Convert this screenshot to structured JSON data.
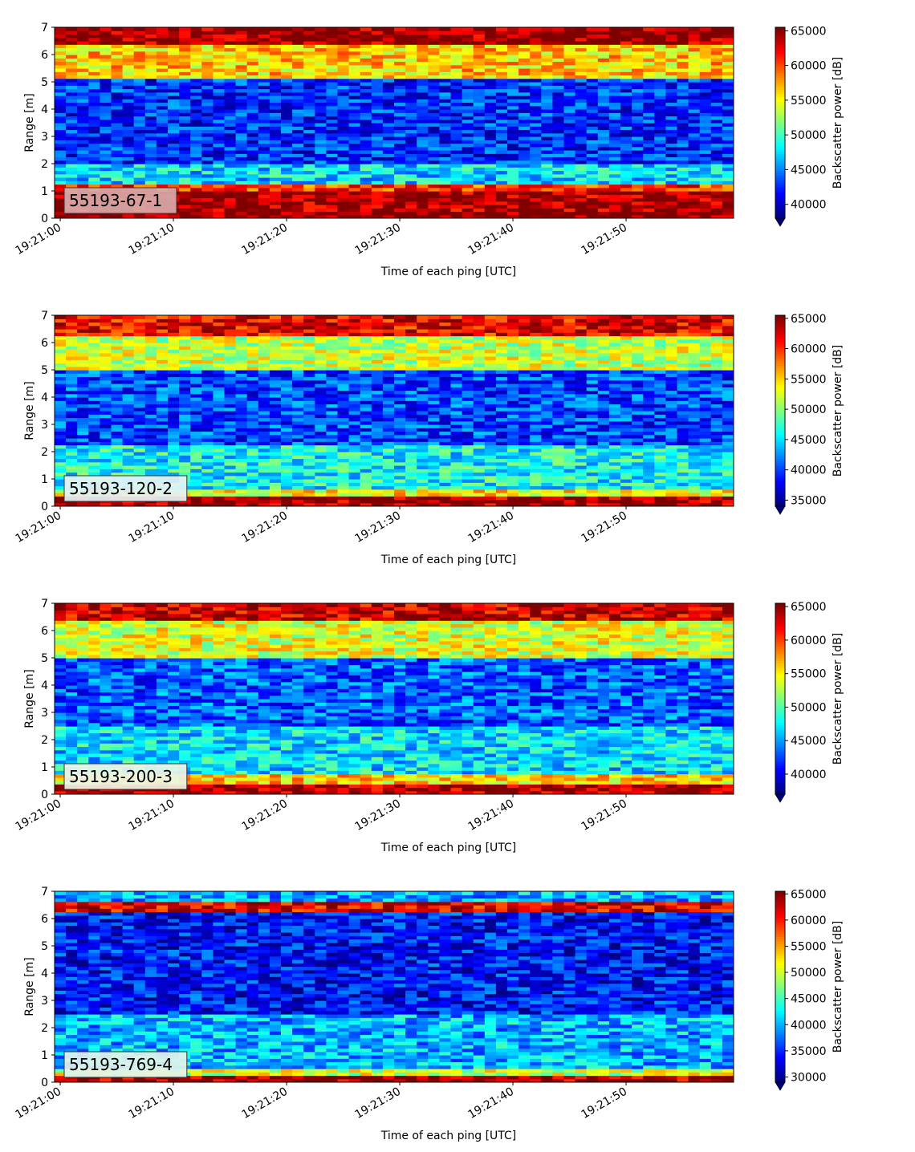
{
  "chart_data": [
    {
      "type": "heatmap",
      "label": "55193-67-1",
      "label_bg": "#d9a9a9",
      "xlabel": "Time of each ping [UTC]",
      "ylabel": "Range [m]",
      "colorbar_label": "Backscatter power [dB]",
      "x_ticks": [
        "19:21:00",
        "19:21:10",
        "19:21:20",
        "19:21:30",
        "19:21:40",
        "19:21:50"
      ],
      "x_range_seconds": [
        -0.5,
        59.5
      ],
      "ylim": [
        0,
        7
      ],
      "y_ticks": [
        0,
        1,
        2,
        3,
        4,
        5,
        6,
        7
      ],
      "clim": [
        38000,
        65500
      ],
      "cbar_ticks": [
        40000,
        45000,
        50000,
        55000,
        60000,
        65000
      ],
      "colormap": "jet",
      "layers": [
        {
          "from": 0.0,
          "to": 0.25,
          "value": 65500
        },
        {
          "from": 0.25,
          "to": 1.05,
          "value": 64500
        },
        {
          "from": 1.05,
          "to": 1.3,
          "value": 60500
        },
        {
          "from": 1.3,
          "to": 2.0,
          "value": 47500
        },
        {
          "from": 2.0,
          "to": 5.1,
          "value": 42500
        },
        {
          "from": 5.1,
          "to": 6.4,
          "value": 56500
        },
        {
          "from": 6.4,
          "to": 7.0,
          "value": 65000
        }
      ]
    },
    {
      "type": "heatmap",
      "label": "55193-120-2",
      "label_bg": "#e6f2f5",
      "xlabel": "Time of each ping [UTC]",
      "ylabel": "Range [m]",
      "colorbar_label": "Backscatter power [dB]",
      "x_ticks": [
        "19:21:00",
        "19:21:10",
        "19:21:20",
        "19:21:30",
        "19:21:40",
        "19:21:50"
      ],
      "x_range_seconds": [
        -0.5,
        59.5
      ],
      "ylim": [
        0,
        7
      ],
      "y_ticks": [
        0,
        1,
        2,
        3,
        4,
        5,
        6,
        7
      ],
      "clim": [
        34000,
        65500
      ],
      "cbar_ticks": [
        35000,
        40000,
        45000,
        50000,
        55000,
        60000,
        65000
      ],
      "colormap": "jet",
      "layers": [
        {
          "from": 0.0,
          "to": 0.35,
          "value": 64500
        },
        {
          "from": 0.35,
          "to": 0.6,
          "value": 54000
        },
        {
          "from": 0.6,
          "to": 2.2,
          "value": 46000
        },
        {
          "from": 2.2,
          "to": 5.0,
          "value": 40000
        },
        {
          "from": 5.0,
          "to": 6.3,
          "value": 52000
        },
        {
          "from": 6.3,
          "to": 7.0,
          "value": 62000
        }
      ]
    },
    {
      "type": "heatmap",
      "label": "55193-200-3",
      "label_bg": "#eef5e6",
      "xlabel": "Time of each ping [UTC]",
      "ylabel": "Range [m]",
      "colorbar_label": "Backscatter power [dB]",
      "x_ticks": [
        "19:21:00",
        "19:21:10",
        "19:21:20",
        "19:21:30",
        "19:21:40",
        "19:21:50"
      ],
      "x_range_seconds": [
        -0.5,
        59.5
      ],
      "ylim": [
        0,
        7
      ],
      "y_ticks": [
        0,
        1,
        2,
        3,
        4,
        5,
        6,
        7
      ],
      "clim": [
        37000,
        65500
      ],
      "cbar_ticks": [
        40000,
        45000,
        50000,
        55000,
        60000,
        65000
      ],
      "colormap": "jet",
      "layers": [
        {
          "from": 0.0,
          "to": 0.35,
          "value": 64500
        },
        {
          "from": 0.35,
          "to": 0.7,
          "value": 56000
        },
        {
          "from": 0.7,
          "to": 2.5,
          "value": 47000
        },
        {
          "from": 2.5,
          "to": 5.0,
          "value": 43000
        },
        {
          "from": 5.0,
          "to": 6.4,
          "value": 54000
        },
        {
          "from": 6.4,
          "to": 7.0,
          "value": 63500
        }
      ]
    },
    {
      "type": "heatmap",
      "label": "55193-769-4",
      "label_bg": "#e3f3ec",
      "xlabel": "Time of each ping [UTC]",
      "ylabel": "Range [m]",
      "colorbar_label": "Backscatter power [dB]",
      "x_ticks": [
        "19:21:00",
        "19:21:10",
        "19:21:20",
        "19:21:30",
        "19:21:40",
        "19:21:50"
      ],
      "x_range_seconds": [
        -0.5,
        59.5
      ],
      "ylim": [
        0,
        7
      ],
      "y_ticks": [
        0,
        1,
        2,
        3,
        4,
        5,
        6,
        7
      ],
      "clim": [
        29000,
        65500
      ],
      "cbar_ticks": [
        30000,
        35000,
        40000,
        45000,
        50000,
        55000,
        60000,
        65000
      ],
      "colormap": "jet",
      "layers": [
        {
          "from": 0.0,
          "to": 0.2,
          "value": 64000
        },
        {
          "from": 0.2,
          "to": 0.45,
          "value": 50000
        },
        {
          "from": 0.45,
          "to": 2.5,
          "value": 40000
        },
        {
          "from": 2.5,
          "to": 6.3,
          "value": 34000
        },
        {
          "from": 6.3,
          "to": 6.6,
          "value": 62000
        },
        {
          "from": 6.6,
          "to": 7.0,
          "value": 40000
        }
      ]
    }
  ]
}
